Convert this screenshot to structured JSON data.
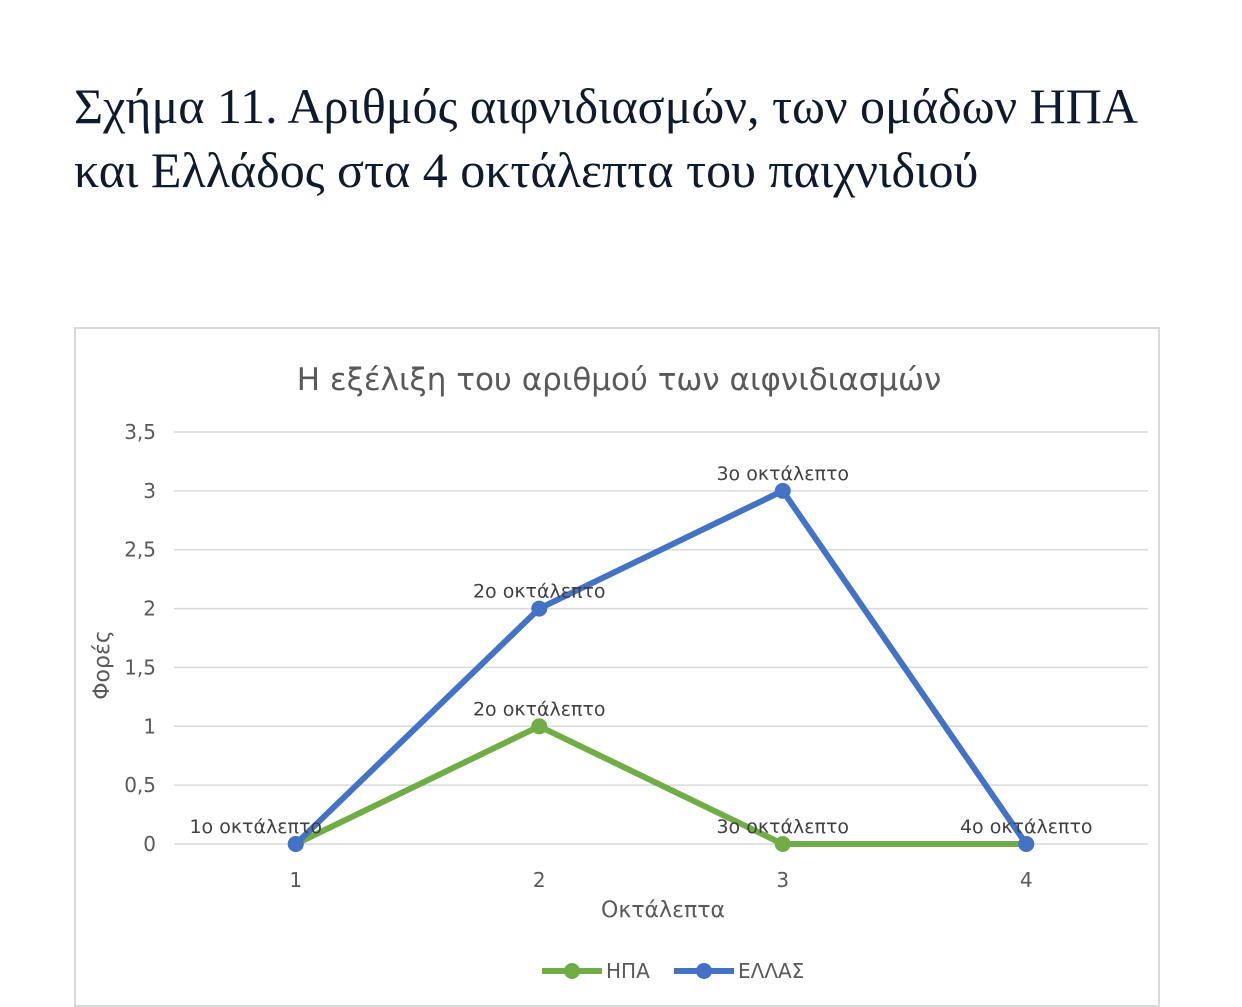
{
  "caption": "Σχήμα 11. Αριθμός αιφνιδιασμών, των ομάδων ΗΠΑ και Ελλάδος στα 4 οκτάλεπτα του παιχνιδιού",
  "chart_data": {
    "type": "line",
    "title": "Η εξέλιξη του αριθμού των αιφνιδιασμών",
    "xlabel": "Οκτάλεπτα",
    "ylabel": "Φορές",
    "x": [
      1,
      2,
      3,
      4
    ],
    "x_tick_labels": [
      "1",
      "2",
      "3",
      "4"
    ],
    "ylim": [
      0,
      3.5
    ],
    "y_ticks": [
      0,
      0.5,
      1,
      1.5,
      2,
      2.5,
      3,
      3.5
    ],
    "y_tick_labels": [
      "0",
      "0,5",
      "1",
      "1,5",
      "2",
      "2,5",
      "3",
      "3,5"
    ],
    "grid": true,
    "legend_position": "bottom",
    "series": [
      {
        "name": "ΗΠΑ",
        "color": "#70ad47",
        "values": [
          0,
          1,
          0,
          0
        ],
        "point_labels": [
          "",
          "2ο οκτάλεπτο",
          "3ο οκτάλεπτο",
          ""
        ]
      },
      {
        "name": "ΕΛΛΑΣ",
        "color": "#4472c4",
        "values": [
          0,
          2,
          3,
          0
        ],
        "point_labels": [
          "1ο οκτάλεπτο",
          "2ο οκτάλεπτο",
          "3ο οκτάλεπτο",
          "4ο οκτάλεπτο"
        ]
      }
    ]
  }
}
